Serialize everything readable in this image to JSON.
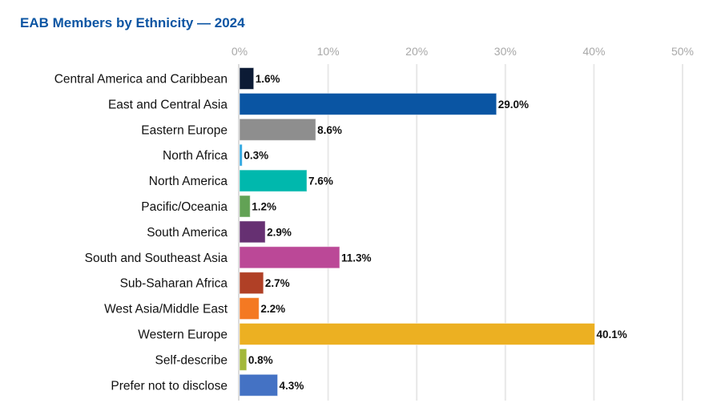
{
  "chart_data": {
    "type": "bar",
    "orientation": "horizontal",
    "title": "EAB Members by Ethnicity — 2024",
    "xlabel": "",
    "ylabel": "",
    "xlim": [
      0,
      50
    ],
    "x_ticks": [
      "0%",
      "10%",
      "20%",
      "30%",
      "40%",
      "50%"
    ],
    "x_tick_values": [
      0,
      10,
      20,
      30,
      40,
      50
    ],
    "x_axis_position": "top",
    "grid": true,
    "categories": [
      "Central America and Caribbean",
      "East and Central Asia",
      "Eastern Europe",
      "North Africa",
      "North America",
      "Pacific/Oceania",
      "South America",
      "South and Southeast Asia",
      "Sub-Saharan Africa",
      "West Asia/Middle East",
      "Western Europe",
      "Self-describe",
      "Prefer not to disclose"
    ],
    "values": [
      1.6,
      29.0,
      8.6,
      0.3,
      7.6,
      1.2,
      2.9,
      11.3,
      2.7,
      2.2,
      40.1,
      0.8,
      4.3
    ],
    "data_labels": [
      "1.6%",
      "29.0%",
      "8.6%",
      "0.3%",
      "7.6%",
      "1.2%",
      "2.9%",
      "11.3%",
      "2.7%",
      "2.2%",
      "40.1%",
      "0.8%",
      "4.3%"
    ],
    "colors": [
      "#0c1b35",
      "#0a55a3",
      "#8e8e8e",
      "#2aa5e0",
      "#00b8ad",
      "#62a255",
      "#663072",
      "#bb4897",
      "#b04026",
      "#f47922",
      "#ecb022",
      "#a3b83a",
      "#4472c4"
    ]
  }
}
